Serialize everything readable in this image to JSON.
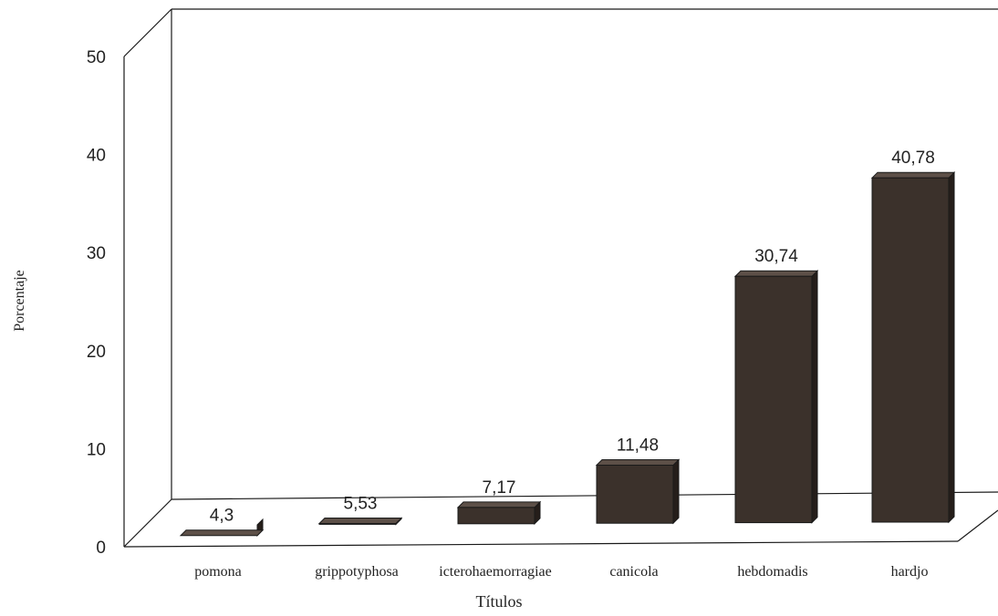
{
  "chart_data": {
    "type": "bar",
    "title": "",
    "xlabel": "Títulos",
    "ylabel": "Porcentaje",
    "categories": [
      "pomona",
      "grippotyphosa",
      "icterohaemorragiae",
      "canicola",
      "hebdomadis",
      "hardjo"
    ],
    "values": [
      4.3,
      5.53,
      7.17,
      11.48,
      30.74,
      40.78
    ],
    "value_labels": [
      "4,3",
      "5,53",
      "7,17",
      "11,48",
      "30,74",
      "40,78"
    ],
    "y_ticks": [
      "0",
      "10",
      "20",
      "30",
      "40",
      "50"
    ],
    "ylim": [
      0,
      50
    ],
    "grid": false,
    "legend": "none",
    "style": "3d",
    "colors": {
      "bar_front": "#3b312b",
      "bar_top": "#5d5048",
      "bar_side": "#251e1a",
      "axis": "#1a1a1a"
    }
  }
}
